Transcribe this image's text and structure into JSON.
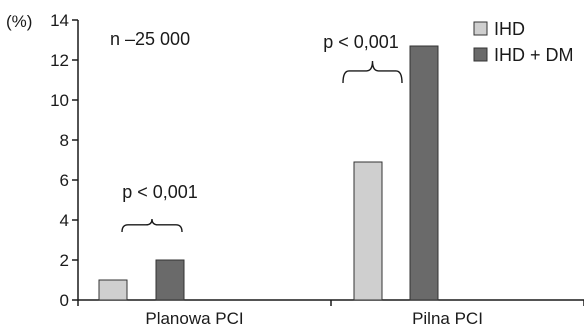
{
  "chart_data": {
    "type": "bar",
    "y_unit_label": "(%)",
    "categories": [
      "Planowa PCI",
      "Pilna PCI"
    ],
    "series": [
      {
        "name": "IHD",
        "values": [
          1.0,
          6.9
        ],
        "color": "#cfcfcf"
      },
      {
        "name": "IHD + DM",
        "values": [
          2.0,
          12.7
        ],
        "color": "#6a6a6a"
      }
    ],
    "ylim": [
      0,
      14
    ],
    "yticks": [
      0,
      2,
      4,
      6,
      8,
      10,
      12,
      14
    ],
    "grid": false,
    "legend_position": "top-right",
    "annotations": {
      "sample_size": "n –25 000",
      "group_pvalues": [
        "p < 0,001",
        "p < 0,001"
      ]
    }
  }
}
